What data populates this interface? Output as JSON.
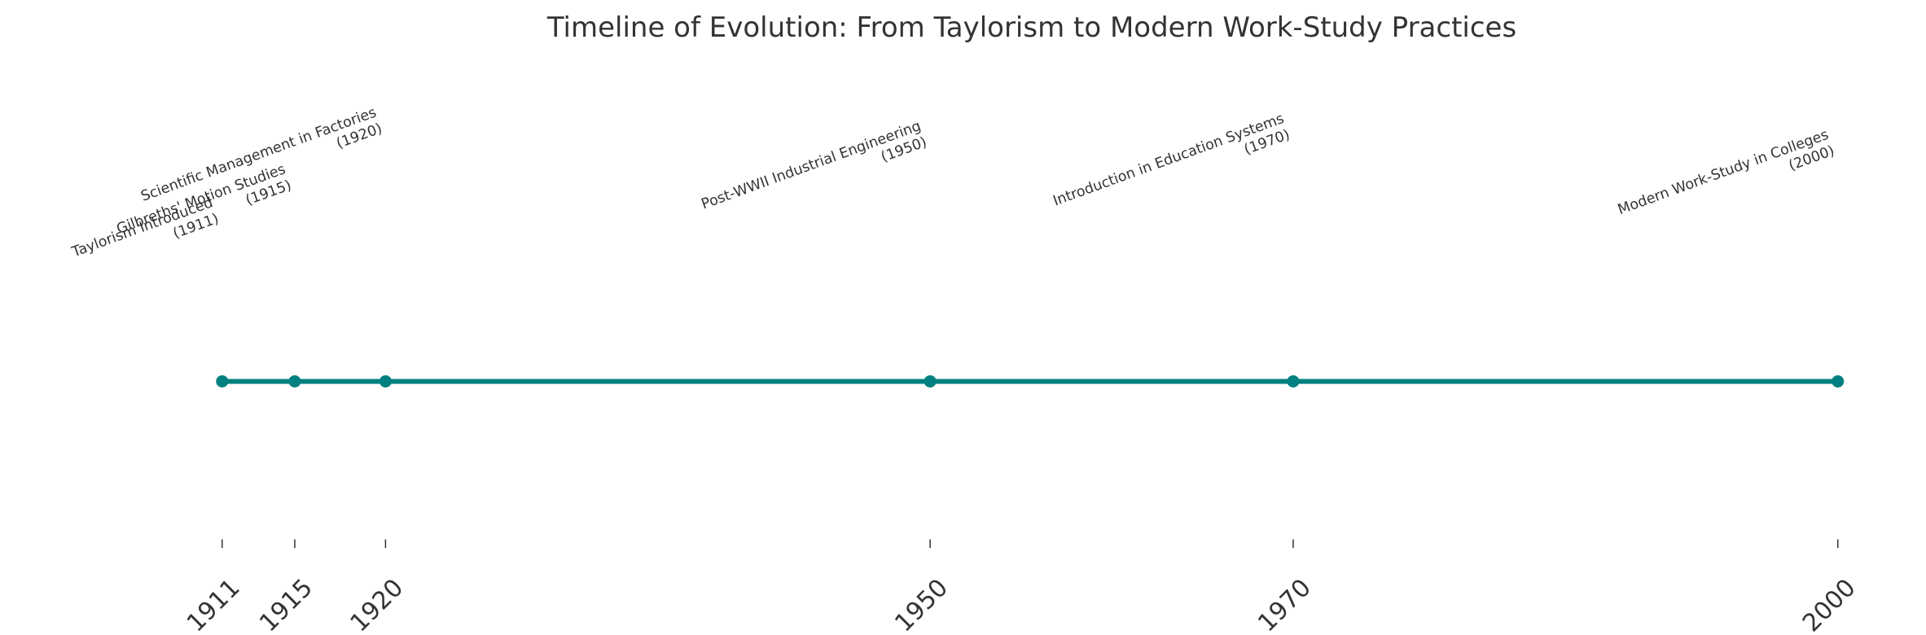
{
  "chart_data": {
    "type": "timeline",
    "title": "Timeline of Evolution: From Taylorism to Modern Work-Study Practices",
    "x": [
      1911,
      1915,
      1920,
      1950,
      1970,
      2000
    ],
    "labels": [
      "Taylorism Introduced\n(1911)",
      "Gilbreths' Motion Studies\n(1915)",
      "Scientific Management in Factories\n(1920)",
      "Post-WWII Industrial Engineering\n(1950)",
      "Introduction in Education Systems\n(1970)",
      "Modern Work-Study in Colleges\n(2000)"
    ],
    "color": "#008080",
    "xlim": [
      1906.55,
      2004.45
    ],
    "xticks": [
      1911,
      1915,
      1920,
      1950,
      1970,
      2000
    ]
  }
}
